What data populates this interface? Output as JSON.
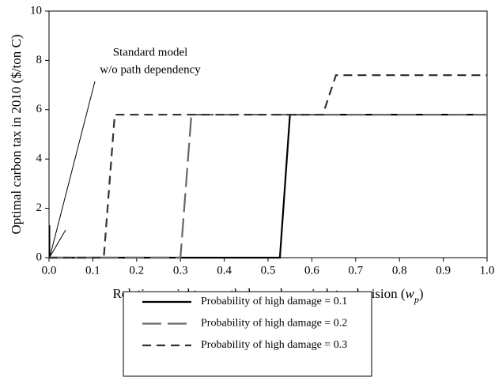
{
  "chart_data": {
    "type": "line",
    "xlabel": [
      "Relative weight on path dependency in later decision (",
      "w",
      "p",
      ")"
    ],
    "ylabel": "Optimal carbon tax in 2010 ($/ton C)",
    "annotation": [
      "Standard model",
      "w/o path dependency"
    ],
    "xlim": [
      0,
      1
    ],
    "ylim": [
      0,
      10
    ],
    "xticks": [
      {
        "value": 0,
        "label": "0.0"
      },
      0.1,
      0.2,
      0.3,
      0.4,
      0.5,
      0.6,
      0.7,
      0.8,
      0.9,
      {
        "value": 1,
        "label": "1.0"
      }
    ],
    "yticks": [
      0,
      2,
      4,
      6,
      8,
      10
    ],
    "series": [
      {
        "name": "Probability of high damage = 0.1",
        "color": "#000000",
        "dash": "solid",
        "x": [
          0,
          0.527,
          0.55,
          1
        ],
        "values": [
          0,
          0,
          5.8,
          5.8
        ]
      },
      {
        "name": "Probability of high damage = 0.2",
        "color": "#666666",
        "dash": "long",
        "x": [
          0,
          0.3,
          0.325,
          1
        ],
        "values": [
          0,
          0,
          5.8,
          5.8
        ]
      },
      {
        "name": "Probability of high damage = 0.3",
        "color": "#333333",
        "dash": "short",
        "x": [
          0,
          0.125,
          0.15,
          0.625,
          0.655,
          1
        ],
        "values": [
          0,
          0,
          5.8,
          5.8,
          7.4,
          7.4
        ]
      }
    ]
  }
}
